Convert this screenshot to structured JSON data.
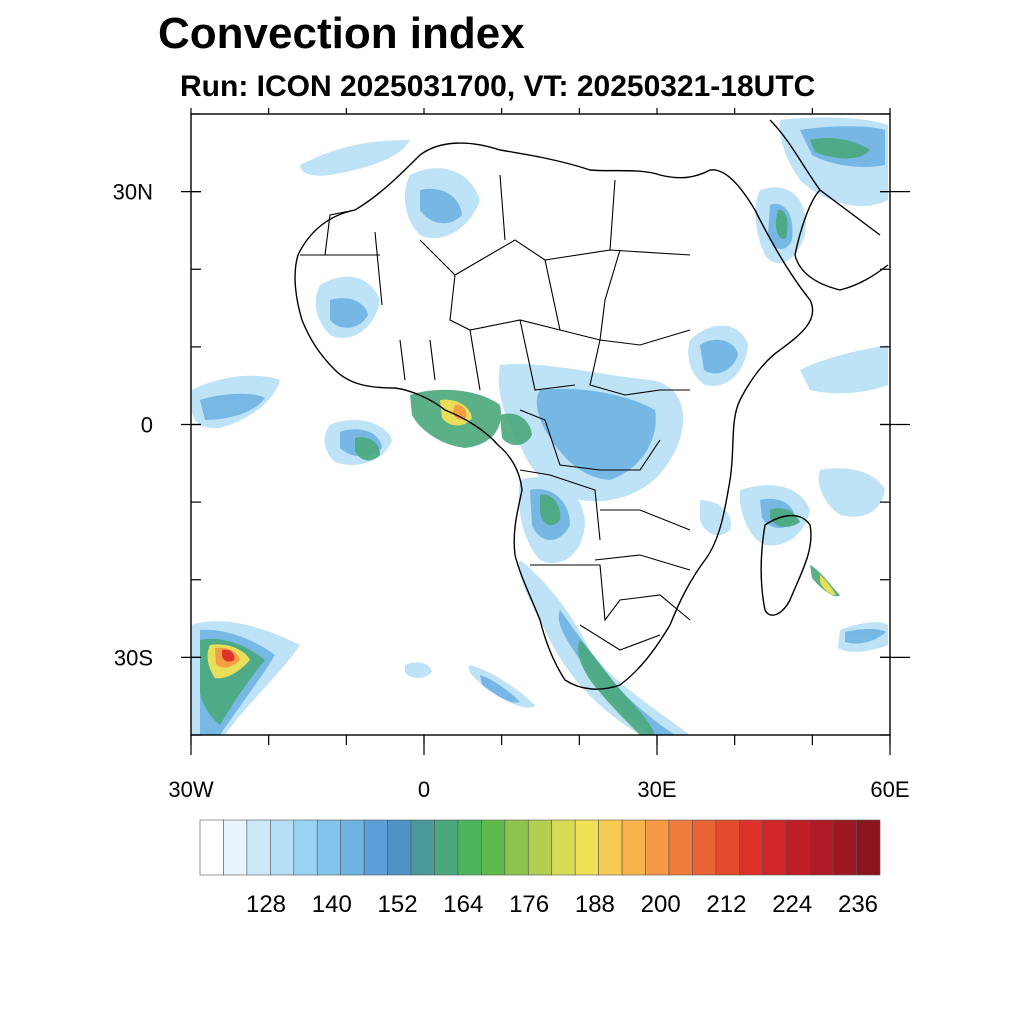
{
  "title": "Convection index",
  "subtitle": "Run: ICON 2025031700,  VT: 20250321-18UTC",
  "map": {
    "extent": {
      "lon": [
        -30,
        60
      ],
      "lat": [
        -40,
        40
      ]
    },
    "lat_ticks": [
      {
        "value": 30,
        "label": "30N"
      },
      {
        "value": 0,
        "label": "0"
      },
      {
        "value": -30,
        "label": "30S"
      }
    ],
    "lon_ticks": [
      {
        "value": -30,
        "label": "30W"
      },
      {
        "value": 0,
        "label": "0"
      },
      {
        "value": 30,
        "label": "30E"
      },
      {
        "value": 60,
        "label": "60E"
      }
    ]
  },
  "colorbar": {
    "colors": [
      "#ffffff",
      "#e6f4fb",
      "#cde9f8",
      "#b3def5",
      "#9ad4f2",
      "#82c5ec",
      "#6fb3e3",
      "#5a9fd7",
      "#4d93c6",
      "#4a9a9b",
      "#4aa87c",
      "#4bb55e",
      "#5dba4b",
      "#8cc44c",
      "#b2cf52",
      "#d7dc57",
      "#f0e156",
      "#f8cc52",
      "#f7b34c",
      "#f49a44",
      "#f07d3c",
      "#ea6332",
      "#e44a2c",
      "#dc3229",
      "#d02627",
      "#c01e27",
      "#ae1a25",
      "#9d1822",
      "#8b151d"
    ],
    "labels": [
      {
        "index": 3,
        "text": "128"
      },
      {
        "index": 6,
        "text": "140"
      },
      {
        "index": 9,
        "text": "152"
      },
      {
        "index": 12,
        "text": "164"
      },
      {
        "index": 15,
        "text": "176"
      },
      {
        "index": 18,
        "text": "188"
      },
      {
        "index": 21,
        "text": "200"
      },
      {
        "index": 24,
        "text": "212"
      },
      {
        "index": 27,
        "text": "224"
      },
      {
        "index": 30,
        "text": "236"
      }
    ]
  }
}
